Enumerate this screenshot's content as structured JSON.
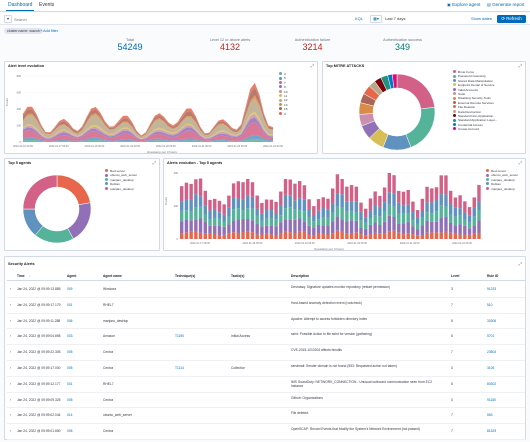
{
  "tabs": [
    {
      "label": "Dashboard",
      "active": true
    },
    {
      "label": "Events",
      "active": false
    }
  ],
  "header_links": {
    "explore_agent": "Explore agent",
    "generate_report": "Generate report"
  },
  "search": {
    "placeholder": "Search",
    "language": "KQL",
    "time_range": "Last 7 days",
    "show_dates": "Show dates",
    "refresh": "Refresh"
  },
  "filters": {
    "pill": "cluster.name: wazuh",
    "add_filter": "+ Add filter"
  },
  "stats": [
    {
      "label": "Total",
      "value": "54249",
      "color": "#006bb8"
    },
    {
      "label": "Level 12 or above alerts",
      "value": "4132",
      "color": "#bd271e"
    },
    {
      "label": "Authentication failure",
      "value": "3214",
      "color": "#bd271e"
    },
    {
      "label": "Authentication success",
      "value": "349",
      "color": "#017d73"
    }
  ],
  "panels": {
    "alert_level_evolution": "Alert level evolution",
    "mitre": "Top MITRE ATT&CKS",
    "top5_agents": "Top 5 agents",
    "alerts_evolution_top5": "Alerts evolution - Top 5 agents",
    "security_alerts": "Security Alerts"
  },
  "chart_data": [
    {
      "type": "area",
      "title": "Alert level evolution",
      "xlabel": "timestamp per 3 hours",
      "ylabel": "Count",
      "x": [
        "2022-01-16 00:00",
        "2022-01-17 00:00",
        "2022-01-18 00:00",
        "2022-01-19 00:00",
        "2022-01-20 00:00",
        "2022-01-21 00:00",
        "2022-01-22 00:00",
        "2022-01-23 00:00"
      ],
      "legend": [
        "3",
        "5",
        "7",
        "9",
        "10",
        "11",
        "12",
        "13",
        "15",
        "4"
      ],
      "colors": [
        "#54b399",
        "#6092c0",
        "#d36086",
        "#9170b8",
        "#ca8eae",
        "#d6bf57",
        "#b9a888",
        "#da8b45",
        "#aa6556",
        "#e7664c"
      ],
      "yticks": [
        "0",
        "200",
        "400",
        "600",
        "800"
      ]
    },
    {
      "type": "pie",
      "title": "Top MITRE ATT&CKS",
      "labels": [
        "Brute Force",
        "Password Guessing",
        "Stored Data Manipulation",
        "Endpoint Denial of Service",
        "Valid Accounts",
        "Sudo",
        "Disabling Security Tools",
        "External Remote Services",
        "File Deletion",
        "Data Destruction",
        "Standard Non-Application...",
        "Standard Application Layer...",
        "Credential Access",
        "Create Account"
      ],
      "values": [
        23,
        21,
        12,
        7,
        6,
        5,
        5,
        4,
        4,
        3,
        3,
        3,
        2,
        2
      ],
      "colors": [
        "#d36086",
        "#54b399",
        "#6092c0",
        "#d6bf57",
        "#9170b8",
        "#ca8eae",
        "#da8b45",
        "#aa6556",
        "#e7664c",
        "#b9a888",
        "#7b000b",
        "#209280",
        "#0077cc",
        "#dd0a73"
      ]
    },
    {
      "type": "pie",
      "title": "Top 5 agents",
      "labels": [
        "Red server",
        "ubuntu_web_server",
        "manjaro_desktop",
        "Debian",
        "manjaro_desktop"
      ],
      "values": [
        22,
        20,
        19,
        14,
        25
      ],
      "colors": [
        "#e7664c",
        "#9170b8",
        "#54b399",
        "#6092c0",
        "#d36086"
      ]
    },
    {
      "type": "bar",
      "title": "Alerts evolution - Top 5 agents",
      "xlabel": "timestamp per 3 hours",
      "ylabel": "Count",
      "legend": [
        "Red server",
        "ubuntu_web_server",
        "manjaro_desktop",
        "Debian",
        "manjaro_desktop"
      ],
      "colors": [
        "#e7664c",
        "#9170b8",
        "#54b399",
        "#6092c0",
        "#d36086"
      ],
      "x": [
        "2022-01-17 06:00",
        "2022-01-18 06:00",
        "2022-01-19 06:00",
        "2022-01-20 06:00",
        "2022-01-21 06:00",
        "2022-01-22 06:00"
      ],
      "yticks": [
        "0",
        "200",
        "400"
      ]
    }
  ],
  "alerts_table": {
    "columns": [
      "Time",
      "Agent",
      "Agent name",
      "Technique(s)",
      "Tactic(s)",
      "Description",
      "Level",
      "Rule ID"
    ],
    "rows": [
      [
        "Jan 24, 2022 @ 09:09:13.885",
        "009",
        "Windows",
        "",
        "",
        "Dnsmasq: Signature updates monitor repository (restart permission)",
        "3",
        "91233"
      ],
      [
        "Jan 24, 2022 @ 09:09:17.179",
        "001",
        "RHEL7",
        "",
        "",
        "Host-based anomaly detection event (rootcheck)",
        "7",
        "510"
      ],
      [
        "Jan 24, 2022 @ 09:09:11.288",
        "006",
        "manjaro_desktop",
        "",
        "",
        "Apache: Attempt to access forbidden directory index",
        "5",
        "30306"
      ],
      [
        "Jan 24, 2022 @ 09:09:04.898",
        "003",
        "Amazon",
        "T1190",
        "Initial Access",
        "sshd: Possible Action to file sshd for version (gathering)",
        "6",
        "5701"
      ],
      [
        "Jan 24, 2022 @ 09:09:22.305",
        "005",
        "Centos",
        "",
        "",
        "CVE-2019-1010204 affects binutils",
        "7",
        "23504"
      ],
      [
        "Jan 24, 2022 @ 09:09:17.000",
        "005",
        "Centos",
        "T1114",
        "Collection",
        "sendmail: Sender domain is not found (553: Requested action not taken)",
        "3",
        "3105"
      ],
      [
        "Jan 24, 2022 @ 09:09:12.177",
        "001",
        "RHEL7",
        "",
        "",
        "IMS GuardDuty: NETWORK_CONNECTION - Unusual outbound communication seen from EC2 instance",
        "6",
        "80302"
      ],
      [
        "Jan 24, 2022 @ 09:09:09.325",
        "005",
        "Centos",
        "",
        "",
        "Github: Organizations",
        "3",
        "91180"
      ],
      [
        "Jan 24, 2022 @ 09:09:02.044",
        "014",
        "ubuntu_web_server",
        "",
        "",
        "File deleted.",
        "7",
        "553"
      ],
      [
        "Jan 24, 2022 @ 09:09:01.650",
        "005",
        "Centos",
        "",
        "",
        "OpenSCAP: Record Events that Modify the System's Network Environment (not passed)",
        "7",
        "81529"
      ]
    ]
  }
}
